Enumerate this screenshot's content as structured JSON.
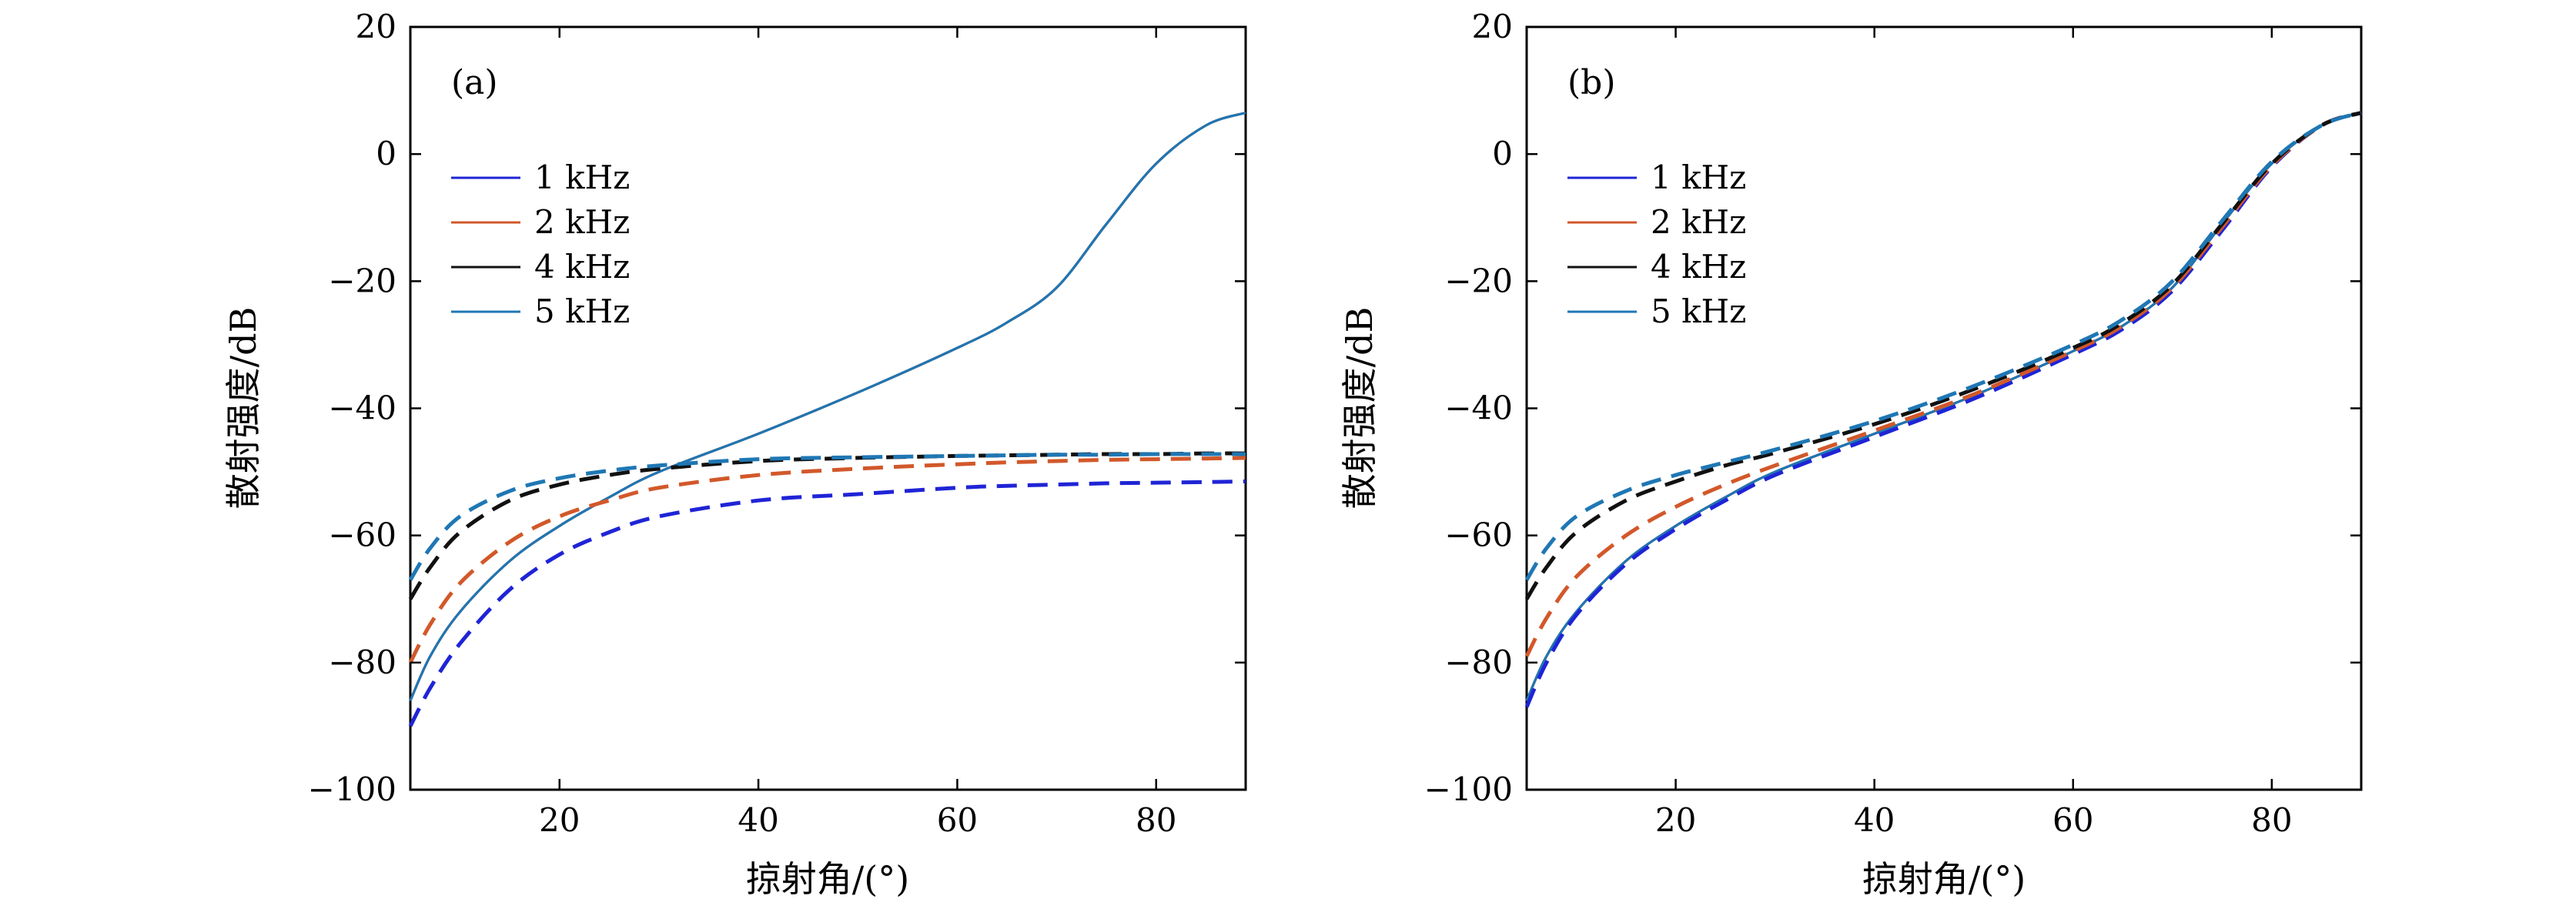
{
  "colors": {
    "1 kHz": "#1f24d6",
    "2 kHz": "#d2582a",
    "4 kHz": "#111111",
    "5 kHz": "#1f77b4"
  },
  "chart_data": [
    {
      "type": "line",
      "panel_label": "(a)",
      "xlabel": "掠射角/(°)",
      "ylabel": "散射强度/dB",
      "xlim": [
        5,
        89
      ],
      "ylim": [
        -100,
        20
      ],
      "xticks": [
        20,
        40,
        60,
        80
      ],
      "yticks": [
        20,
        0,
        -20,
        -40,
        -60,
        -80,
        -100
      ],
      "grid": false,
      "legend_position": "upper-left",
      "legend": [
        "1 kHz",
        "2 kHz",
        "4 kHz",
        "5 kHz"
      ],
      "x": [
        5,
        7,
        10,
        15,
        20,
        25,
        30,
        40,
        50,
        60,
        65,
        70,
        75,
        80,
        85,
        89
      ],
      "series": [
        {
          "name": "1 kHz",
          "style": "solid",
          "values": [
            -86,
            -79,
            -72,
            -64,
            -58.5,
            -54,
            -50,
            -44,
            -37.5,
            -30.5,
            -26.5,
            -21,
            -11,
            -1.5,
            4.5,
            6.5
          ]
        },
        {
          "name": "2 kHz",
          "style": "solid",
          "values": [
            -86,
            -79,
            -72,
            -64,
            -58.5,
            -54,
            -50,
            -44,
            -37.5,
            -30.5,
            -26.5,
            -21,
            -11,
            -1.5,
            4.5,
            6.5
          ]
        },
        {
          "name": "4 kHz",
          "style": "solid",
          "values": [
            -86,
            -79,
            -72,
            -64,
            -58.5,
            -54,
            -50,
            -44,
            -37.5,
            -30.5,
            -26.5,
            -21,
            -11,
            -1.5,
            4.5,
            6.5
          ]
        },
        {
          "name": "5 kHz",
          "style": "solid",
          "values": [
            -86,
            -79,
            -72,
            -64,
            -58.5,
            -54,
            -50,
            -44,
            -37.5,
            -30.5,
            -26.5,
            -21,
            -11,
            -1.5,
            4.5,
            6.5
          ]
        },
        {
          "name": "1 kHz",
          "style": "dashed",
          "values": [
            -90,
            -84,
            -77,
            -68.5,
            -63,
            -59.5,
            -57,
            -54.5,
            -53.5,
            -52.5,
            -52.2,
            -52,
            -51.8,
            -51.7,
            -51.6,
            -51.5
          ]
        },
        {
          "name": "2 kHz",
          "style": "dashed",
          "values": [
            -80,
            -74,
            -67.5,
            -61,
            -57,
            -54.5,
            -52.5,
            -50.5,
            -49.5,
            -48.8,
            -48.5,
            -48.3,
            -48.1,
            -48,
            -47.9,
            -47.8
          ]
        },
        {
          "name": "4 kHz",
          "style": "dashed",
          "values": [
            -70,
            -65,
            -59.5,
            -54.5,
            -52,
            -50.5,
            -49.5,
            -48.3,
            -47.8,
            -47.5,
            -47.4,
            -47.3,
            -47.2,
            -47.2,
            -47.1,
            -47.1
          ]
        },
        {
          "name": "5 kHz",
          "style": "dashed",
          "values": [
            -67,
            -62,
            -57,
            -53,
            -51,
            -49.8,
            -49,
            -48,
            -47.7,
            -47.5,
            -47.4,
            -47.3,
            -47.3,
            -47.2,
            -47.2,
            -47.2
          ]
        }
      ]
    },
    {
      "type": "line",
      "panel_label": "(b)",
      "xlabel": "掠射角/(°)",
      "ylabel": "散射强度/dB",
      "xlim": [
        5,
        89
      ],
      "ylim": [
        -100,
        20
      ],
      "xticks": [
        20,
        40,
        60,
        80
      ],
      "yticks": [
        20,
        0,
        -20,
        -40,
        -60,
        -80,
        -100
      ],
      "grid": false,
      "legend_position": "upper-left",
      "legend": [
        "1 kHz",
        "2 kHz",
        "4 kHz",
        "5 kHz"
      ],
      "x": [
        5,
        7,
        10,
        15,
        20,
        25,
        30,
        40,
        50,
        60,
        65,
        70,
        75,
        80,
        85,
        89
      ],
      "series": [
        {
          "name": "1 kHz",
          "style": "solid",
          "values": [
            -86,
            -79,
            -72,
            -64,
            -58.5,
            -54,
            -50,
            -44,
            -38,
            -31,
            -27,
            -21,
            -11,
            -1.5,
            4.5,
            6.5
          ]
        },
        {
          "name": "2 kHz",
          "style": "solid",
          "values": [
            -86,
            -79,
            -72,
            -64,
            -58.5,
            -54,
            -50,
            -44,
            -38,
            -31,
            -27,
            -21,
            -11,
            -1.5,
            4.5,
            6.5
          ]
        },
        {
          "name": "4 kHz",
          "style": "solid",
          "values": [
            -86,
            -79,
            -72,
            -64,
            -58.5,
            -54,
            -50,
            -44,
            -38,
            -31,
            -27,
            -21,
            -11,
            -1.5,
            4.5,
            6.5
          ]
        },
        {
          "name": "5 kHz",
          "style": "solid",
          "values": [
            -86,
            -79,
            -72,
            -64,
            -58.5,
            -54,
            -50,
            -44,
            -38,
            -31,
            -27,
            -21,
            -11,
            -1.5,
            4.5,
            6.5
          ]
        },
        {
          "name": "1 kHz",
          "style": "dashed",
          "values": [
            -87,
            -80,
            -72.5,
            -64.5,
            -59,
            -54.5,
            -50.5,
            -44.5,
            -38.5,
            -31.5,
            -27.5,
            -21.5,
            -12,
            -2,
            4.5,
            6.5
          ]
        },
        {
          "name": "2 kHz",
          "style": "dashed",
          "values": [
            -79,
            -73,
            -66.5,
            -60,
            -55.5,
            -52,
            -49,
            -43.5,
            -37.8,
            -31,
            -27,
            -21,
            -11.5,
            -1.8,
            4.5,
            6.5
          ]
        },
        {
          "name": "4 kHz",
          "style": "dashed",
          "values": [
            -70,
            -65,
            -59.5,
            -54.5,
            -51.5,
            -49,
            -47,
            -42.5,
            -37,
            -30.5,
            -26.5,
            -20.5,
            -11,
            -1.5,
            4.5,
            6.5
          ]
        },
        {
          "name": "5 kHz",
          "style": "dashed",
          "values": [
            -67,
            -62,
            -57,
            -53,
            -50.5,
            -48.5,
            -46.5,
            -42,
            -36.5,
            -30,
            -26,
            -20,
            -10.5,
            -1.2,
            4.5,
            6.5
          ]
        }
      ]
    }
  ]
}
